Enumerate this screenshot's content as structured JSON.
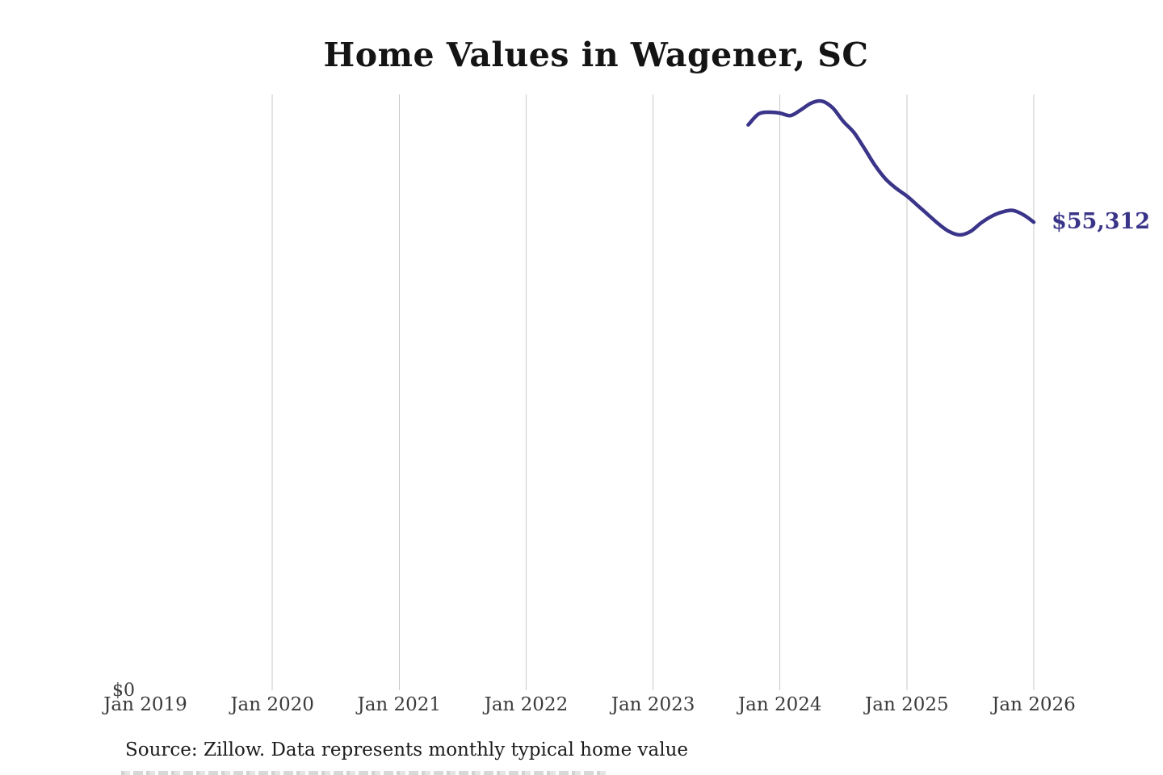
{
  "page": {
    "background": "#ffffff"
  },
  "header": {
    "title": "Home Values in Wagener, SC"
  },
  "footer": {
    "source_text": "Source: Zillow. Data represents monthly typical home value"
  },
  "chart_data": {
    "type": "line",
    "title": "Home Values in Wagener, SC",
    "x_ticks": [
      "Jan 2019",
      "Jan 2020",
      "Jan 2021",
      "Jan 2022",
      "Jan 2023",
      "Jan 2024",
      "Jan 2025",
      "Jan 2026"
    ],
    "grid": "vertical-only",
    "grid_color": "#c9c9c9",
    "y_axis": {
      "zero_label": "$0",
      "min": 0,
      "max_implied": 70400,
      "tick_labels_visible": [
        "$0"
      ]
    },
    "series": [
      {
        "name": "Monthly typical home value",
        "color": "#3a3589",
        "months": [
          "Oct 2023",
          "Nov 2023",
          "Dec 2023",
          "Jan 2024",
          "Feb 2024",
          "Mar 2024",
          "Apr 2024",
          "May 2024",
          "Jun 2024",
          "Jul 2024",
          "Aug 2024",
          "Sep 2024",
          "Oct 2024",
          "Nov 2024",
          "Dec 2024",
          "Jan 2025",
          "Feb 2025",
          "Mar 2025",
          "Apr 2025",
          "May 2025",
          "Jun 2025",
          "Jul 2025",
          "Aug 2025",
          "Sep 2025",
          "Oct 2025",
          "Nov 2025",
          "Dec 2025",
          "Jan 2026"
        ],
        "values": [
          66800,
          68100,
          68300,
          68200,
          67900,
          68600,
          69400,
          69600,
          68800,
          67200,
          65900,
          64000,
          62000,
          60400,
          59300,
          58400,
          57300,
          56200,
          55100,
          54200,
          53800,
          54200,
          55200,
          56000,
          56500,
          56700,
          56200,
          55312
        ]
      }
    ],
    "end_label": {
      "text": "$55,312",
      "value": 55312,
      "color": "#3a3589"
    }
  }
}
